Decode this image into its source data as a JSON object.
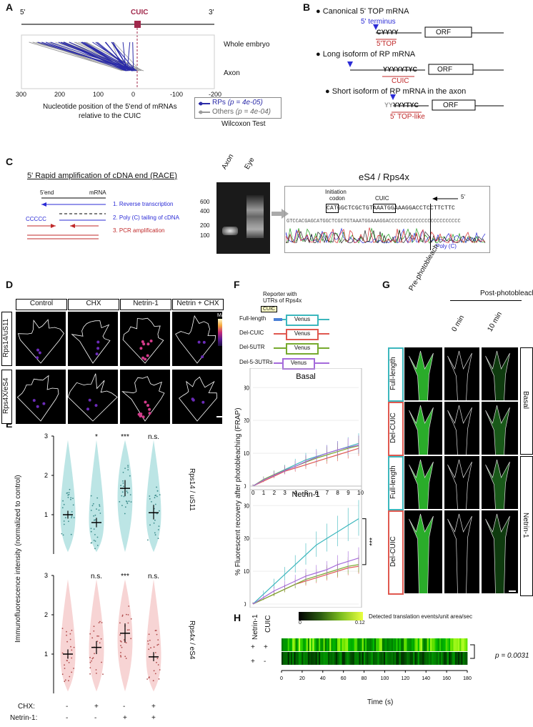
{
  "panels": {
    "a": "A",
    "b": "B",
    "c": "C",
    "d": "D",
    "e": "E",
    "f": "F",
    "g": "G",
    "h": "H"
  },
  "panelA": {
    "five_prime": "5'",
    "three_prime": "3'",
    "cuic": "CUIC",
    "row_whole": "Whole embryo",
    "row_axon": "Axon",
    "xlabel_line1": "Nucleotide position of the 5'end of mRNAs",
    "xlabel_line2": "relative to the CUIC",
    "legend_rps": "RPs",
    "legend_rps_p": "(p = 4e-05)",
    "legend_others": "Others",
    "legend_others_p": "(p = 4e-04)",
    "test": "Wilcoxon Test",
    "rp_color": "#2b2ba8",
    "other_color": "#9a9a9a",
    "cuic_color": "#a0284b",
    "chart_data": {
      "type": "scatter",
      "xlabel": "Nucleotide position of the 5'end of mRNAs relative to the CUIC",
      "xlim": [
        300,
        -200
      ],
      "xticks": [
        300,
        200,
        100,
        0,
        -100,
        -200
      ],
      "series": [
        {
          "name": "RPs"
        },
        {
          "name": "Others"
        }
      ]
    }
  },
  "panelB": {
    "item1": "Canonical 5' TOP mRNA",
    "terminus": "5' terminus",
    "seq1": "CYYYY",
    "top": "5'TOP",
    "orf": "ORF",
    "item2": "Long isoform of RP mRNA",
    "seq2": "YYYYYTYC",
    "cuic": "CUIC",
    "item3": "Short isoform of RP mRNA in the axon",
    "seq3_pre": "YY",
    "seq3": "YYYTYC",
    "toplike": "5' TOP-like"
  },
  "panelC": {
    "title": "5' Rapid amplification of cDNA end (RACE)",
    "fiveend": "5'end",
    "mrna": "mRNA",
    "ccccc": "CCCCC",
    "step1": "1. Reverse transcription",
    "step2": "2. Poly (C) tailing of cDNA",
    "step3": "3. PCR amplification",
    "lane_axon": "Axon",
    "lane_eye": "Eye",
    "ladder": [
      "600",
      "400",
      "200",
      "100"
    ],
    "seq_title": "eS4 / Rps4x",
    "init": "Initiation",
    "codon": "codon",
    "cuic": "CUIC",
    "five": "5'",
    "sequence": "CATGGCTCGCTGTAAATGGAAAGGACCTCCTTCTTC",
    "trace_seq": "GTCCACGAGCATGGCTCGCTGTAAATGGAAAGGACCCCCCCCCCCCCCCCCCCCCCCC",
    "polyc": "Poly (C)"
  },
  "panelD": {
    "cols": [
      "Control",
      "CHX",
      "Netrin-1",
      "Netrin + CHX"
    ],
    "rows": [
      "Rps14/uS11",
      "Rps4X/eS4"
    ],
    "scale_max": "Max",
    "scale_min": "Min"
  },
  "panelE": {
    "ylabel": "Immunofluorescence intensity (normalized to control)",
    "top_title": "Rps14 / uS11",
    "bottom_title": "Rps4x / eS4",
    "top_sig": [
      "",
      "*",
      "***",
      "n.s."
    ],
    "bottom_sig": [
      "",
      "n.s.",
      "***",
      "n.s."
    ],
    "chx_label": "CHX:",
    "netrin_label": "Netrin-1:",
    "chx": [
      "-",
      "+",
      "-",
      "+"
    ],
    "netrin": [
      "-",
      "-",
      "+",
      "+"
    ],
    "yticks": [
      "1",
      "2",
      "3"
    ],
    "chart_data": [
      {
        "type": "violin",
        "title": "Rps14 / uS11",
        "categories": [
          "Control",
          "CHX",
          "Netrin-1",
          "Netrin-1 + CHX"
        ],
        "means": [
          1.0,
          0.8,
          1.67,
          1.05
        ],
        "ci_low": [
          0.9,
          0.68,
          1.47,
          0.88
        ],
        "ci_high": [
          1.1,
          0.92,
          1.88,
          1.25
        ],
        "ylim": [
          0,
          3
        ],
        "significance": [
          "",
          "*",
          "***",
          "n.s."
        ],
        "color": "#8fd3d3"
      },
      {
        "type": "violin",
        "title": "Rps4x / eS4",
        "categories": [
          "Control",
          "CHX",
          "Netrin-1",
          "Netrin-1 + CHX"
        ],
        "means": [
          1.0,
          1.17,
          1.53,
          0.93
        ],
        "ci_low": [
          0.88,
          1.0,
          1.3,
          0.82
        ],
        "ci_high": [
          1.12,
          1.33,
          1.78,
          1.05
        ],
        "ylim": [
          0,
          3
        ],
        "significance": [
          "",
          "n.s.",
          "***",
          "n.s."
        ],
        "color": "#f2b8b8"
      }
    ]
  },
  "panelF": {
    "reporter1": "Reporter with",
    "reporter2": "UTRs of Rps4x",
    "cuic": "CUIC",
    "constructs": [
      "Full-length",
      "Del-CUIC",
      "Del-5UTR",
      "Del-5-3UTRs"
    ],
    "venus": "Venus",
    "colors": [
      "#3cb7bd",
      "#e0584f",
      "#77aa2e",
      "#a56adb"
    ],
    "ylabel": "% Fluorescent recovery after photobleaching (FRAP)",
    "basal": "Basal",
    "netrin": "Netrin-1",
    "sig": "***",
    "xticks": [
      "0",
      "1",
      "2",
      "3",
      "4",
      "5",
      "6",
      "7",
      "8",
      "9",
      "10"
    ],
    "yticks": [
      "0",
      "10",
      "20",
      "30"
    ],
    "chart_data": [
      {
        "type": "line",
        "title": "Basal",
        "x": [
          0,
          1,
          2,
          3,
          4,
          5,
          6,
          7,
          8,
          9,
          10
        ],
        "ylim": [
          0,
          30
        ],
        "series": [
          {
            "name": "Full-length",
            "values": [
              0,
              2,
              3.5,
              5,
              6.5,
              8,
              9,
              10,
              11,
              12,
              13
            ]
          },
          {
            "name": "Del-CUIC",
            "values": [
              0,
              1.5,
              3,
              4.5,
              5.5,
              6.5,
              7.5,
              8.5,
              9.5,
              10.5,
              11.5
            ]
          },
          {
            "name": "Del-5UTR",
            "values": [
              0,
              2,
              3.5,
              4.8,
              6,
              7.3,
              8.5,
              9.5,
              10.5,
              11.5,
              12.3
            ]
          },
          {
            "name": "Del-5-3UTRs",
            "values": [
              0,
              1.8,
              3.3,
              4.7,
              6,
              7.5,
              8.8,
              10,
              11,
              11.8,
              12.5
            ]
          }
        ]
      },
      {
        "type": "line",
        "title": "Netrin-1",
        "x": [
          0,
          1,
          2,
          3,
          4,
          5,
          6,
          7,
          8,
          9,
          10
        ],
        "ylim": [
          0,
          30
        ],
        "series": [
          {
            "name": "Full-length",
            "values": [
              0,
              3,
              6,
              9,
              12,
              15,
              18,
              20,
              22,
              24,
              26
            ]
          },
          {
            "name": "Del-CUIC",
            "values": [
              0,
              1.5,
              3,
              4.5,
              6,
              7,
              8,
              9,
              10,
              11,
              11.5
            ]
          },
          {
            "name": "Del-5UTR",
            "values": [
              0,
              1.5,
              3,
              4.5,
              6,
              7.5,
              8.5,
              9.5,
              10.5,
              11.5,
              12
            ]
          },
          {
            "name": "Del-5-3UTRs",
            "values": [
              0,
              2,
              4,
              5.5,
              7,
              8.5,
              9.5,
              10.5,
              12,
              13,
              14
            ]
          }
        ]
      }
    ]
  },
  "panelG": {
    "pre": "Pre-photobleach",
    "post": "Post-photobleach",
    "t0": "0 min",
    "t10": "10 min",
    "rows": [
      "Full-length",
      "Del-CUIC",
      "Full-length",
      "Del-CUIC"
    ],
    "conds": [
      "Basal",
      "Netrin-1"
    ]
  },
  "panelH": {
    "netrin": "Netrin-1",
    "cuic": "CUIC",
    "legend": "Detected translation events/unit area/sec",
    "lmin": "0",
    "lmax": "0.12",
    "row1": [
      "+",
      "+"
    ],
    "row2": [
      "+",
      "-"
    ],
    "p": "p = 0.0031",
    "xlabel": "Time (s)",
    "xticks": [
      "0",
      "20",
      "40",
      "60",
      "80",
      "100",
      "120",
      "140",
      "160",
      "180"
    ],
    "chart_data": {
      "type": "heatmap",
      "xlabel": "Time (s)",
      "xlim": [
        0,
        180
      ],
      "rows": [
        "Netrin-1 + / CUIC +",
        "Netrin-1 + / CUIC -"
      ],
      "colorbar": [
        0,
        0.12
      ],
      "p_value": "0.0031"
    }
  }
}
